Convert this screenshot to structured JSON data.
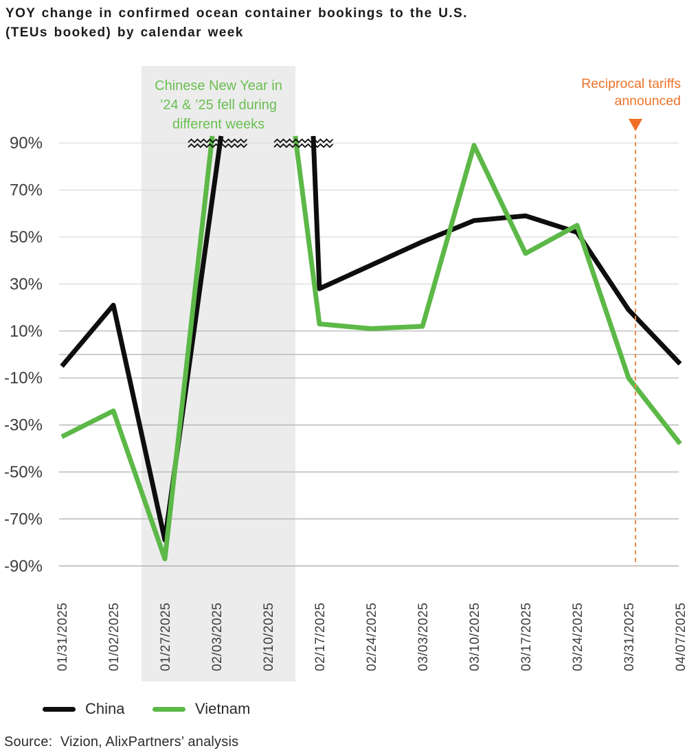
{
  "title": {
    "line1": "YOY change in confirmed ocean container bookings to the U.S.",
    "line2": "(TEUs booked) by calendar week"
  },
  "annotations": {
    "chinese_new_year": {
      "lines": [
        "Chinese New Year in",
        "’24 & ’25 fell during",
        "different weeks"
      ],
      "color": "#6abf52"
    },
    "reciprocal_tariffs": {
      "lines": [
        "Reciprocal tariffs",
        "announced"
      ],
      "color": "#ee7228"
    }
  },
  "legend": [
    {
      "label": "China",
      "color": "#0e0e0e"
    },
    {
      "label": "Vietnam",
      "color": "#5cb847"
    }
  ],
  "source": "Source:  Vizion, AlixPartners’ analysis",
  "chart_data": {
    "type": "line",
    "title": "YOY change in confirmed ocean container bookings to the U.S. (TEUs booked) by calendar week",
    "categories": [
      "01/31/2025",
      "01/02/2025",
      "01/27/2025",
      "02/03/2025",
      "02/10/2025",
      "02/17/2025",
      "02/24/2025",
      "03/03/2025",
      "03/10/2025",
      "03/17/2025",
      "03/24/2025",
      "03/31/2025",
      "04/07/2025"
    ],
    "y_ticks": [
      "90%",
      "70%",
      "50%",
      "30%",
      "10%",
      "-10%",
      "-30%",
      "-50%",
      "-70%",
      "-90%"
    ],
    "y_tick_values": [
      90,
      70,
      50,
      30,
      10,
      -10,
      -30,
      -50,
      -70,
      -90
    ],
    "ylim_displayed": [
      -90,
      90
    ],
    "grid": "horizontal",
    "zero_line": true,
    "axis_break_above_percent": 90,
    "legend_position": "bottom",
    "series": [
      {
        "name": "China",
        "color": "#0e0e0e",
        "values": [
          -5,
          21,
          -79,
          ">90",
          ">90",
          28,
          38,
          48,
          57,
          59,
          52,
          19,
          -4
        ],
        "break_exit_index": 3.09,
        "break_entry_index": 4.88
      },
      {
        "name": "Vietnam",
        "color": "#5cb847",
        "values": [
          -35,
          -24,
          -87,
          ">90",
          ">90",
          13,
          11,
          12,
          89,
          43,
          55,
          -10,
          -38
        ],
        "break_exit_index": 2.92,
        "break_entry_index": 4.53
      }
    ],
    "shaded_band": {
      "covers_categories": [
        "01/27/2025",
        "02/03/2025",
        "02/10/2025"
      ],
      "color": "#ececec",
      "label": "Chinese New Year in ’24 & ’25 fell during different weeks"
    },
    "event_line": {
      "between_categories": [
        "03/31/2025",
        "04/07/2025"
      ],
      "style": "dashed-orange-vertical",
      "label": "Reciprocal tariffs announced"
    }
  }
}
